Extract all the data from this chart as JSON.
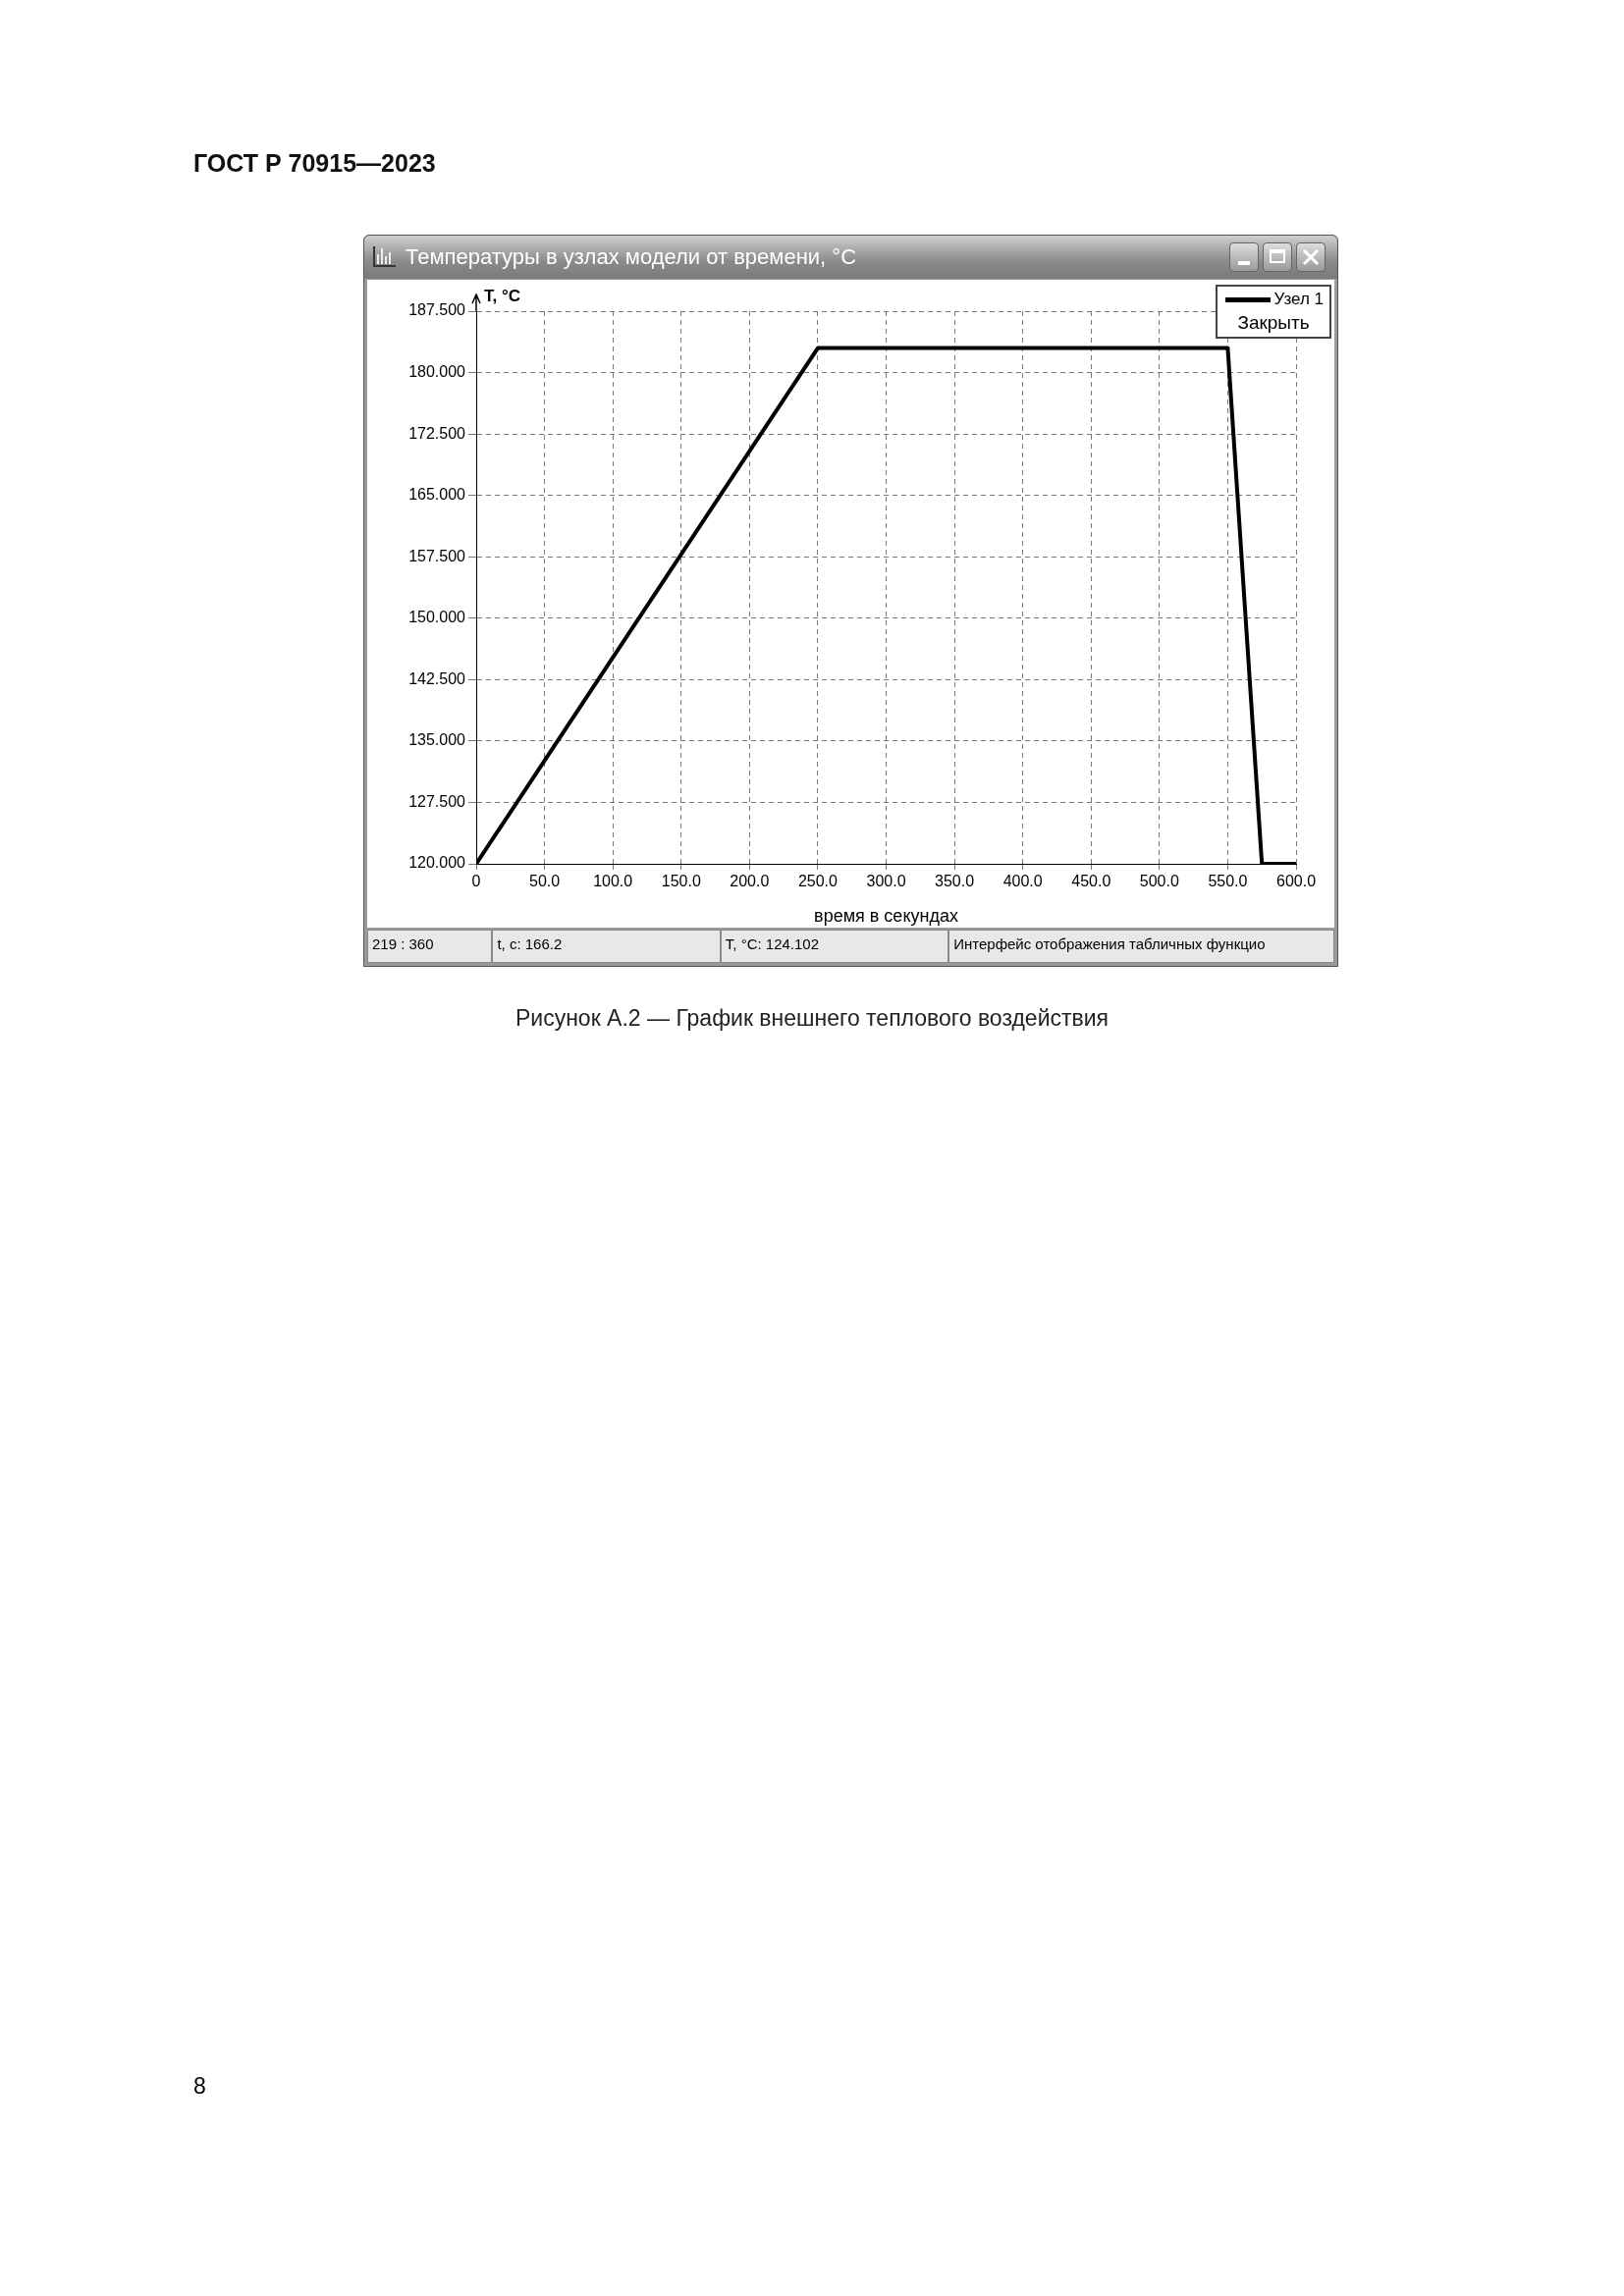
{
  "chart_data": {
    "type": "line",
    "title": "Температуры в узлах модели от времени, °С",
    "xlabel": "время в секундах",
    "ylabel": "T, °C",
    "x": [
      0,
      250,
      550,
      575,
      600
    ],
    "series": [
      {
        "name": "Узел 1",
        "color": "#000000",
        "values": [
          120,
          183,
          183,
          120,
          120
        ]
      }
    ],
    "xlim": [
      0,
      600
    ],
    "xticks": [
      0,
      {
        "value": 50,
        "label": "50.0"
      },
      {
        "value": 100,
        "label": "100.0"
      },
      {
        "value": 150,
        "label": "150.0"
      },
      {
        "value": 200,
        "label": "200.0"
      },
      {
        "value": 250,
        "label": "250.0"
      },
      {
        "value": 300,
        "label": "300.0"
      },
      {
        "value": 350,
        "label": "350.0"
      },
      {
        "value": 400,
        "label": "400.0"
      },
      {
        "value": 450,
        "label": "450.0"
      },
      {
        "value": 500,
        "label": "500.0"
      },
      {
        "value": 550,
        "label": "550.0"
      },
      {
        "value": 600,
        "label": "600.0"
      }
    ],
    "ylim": [
      120,
      187.5
    ],
    "yticks": [
      {
        "value": 120,
        "label": "120.000"
      },
      {
        "value": 127.5,
        "label": "127.500"
      },
      {
        "value": 135,
        "label": "135.000"
      },
      {
        "value": 142.5,
        "label": "142.500"
      },
      {
        "value": 150,
        "label": "150.000"
      },
      {
        "value": 157.5,
        "label": "157.500"
      },
      {
        "value": 165,
        "label": "165.000"
      },
      {
        "value": 172.5,
        "label": "172.500"
      },
      {
        "value": 180,
        "label": "180.000"
      },
      {
        "value": 187.5,
        "label": "187.500"
      }
    ],
    "grid": true,
    "legend": "top right",
    "marker": "none",
    "line_style": "solid",
    "annotations": [
      "ГОСТ Р 70915—2023",
      "Закрыть",
      "219 : 360",
      "t, с: 166.2",
      "T, °C: 124.102",
      "Интерфейс отображения табличных функцио",
      "Рисунок А.2 — График внешнего теплового воздействия",
      "8"
    ]
  }
}
